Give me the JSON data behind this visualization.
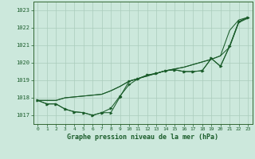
{
  "background_color": "#cce8dc",
  "grid_color": "#aaccbb",
  "line_color": "#1a5c2a",
  "title": "Graphe pression niveau de la mer (hPa)",
  "xlim": [
    -0.5,
    23.5
  ],
  "ylim": [
    1016.5,
    1023.5
  ],
  "yticks": [
    1017,
    1018,
    1019,
    1020,
    1021,
    1022,
    1023
  ],
  "xticks": [
    0,
    1,
    2,
    3,
    4,
    5,
    6,
    7,
    8,
    9,
    10,
    11,
    12,
    13,
    14,
    15,
    16,
    17,
    18,
    19,
    20,
    21,
    22,
    23
  ],
  "series_smooth1": [
    1017.85,
    1017.85,
    1017.85,
    1018.0,
    1018.05,
    1018.1,
    1018.15,
    1018.2,
    1018.4,
    1018.65,
    1018.95,
    1019.1,
    1019.25,
    1019.4,
    1019.55,
    1019.65,
    1019.75,
    1019.9,
    1020.05,
    1020.2,
    1020.4,
    1020.9,
    1022.3,
    1022.55
  ],
  "series_smooth2": [
    1017.85,
    1017.85,
    1017.85,
    1018.0,
    1018.05,
    1018.1,
    1018.15,
    1018.2,
    1018.4,
    1018.65,
    1018.95,
    1019.1,
    1019.25,
    1019.4,
    1019.55,
    1019.65,
    1019.75,
    1019.9,
    1020.05,
    1020.2,
    1020.4,
    1021.85,
    1022.45,
    1022.6
  ],
  "series_marker1": [
    1017.85,
    1017.65,
    1017.65,
    1017.35,
    1017.2,
    1017.15,
    1017.0,
    1017.15,
    1017.15,
    1018.05,
    1018.95,
    1019.1,
    1019.3,
    1019.4,
    1019.55,
    1019.6,
    1019.5,
    1019.5,
    1019.55,
    1020.25,
    1019.8,
    1020.95,
    1022.35,
    1022.6
  ],
  "series_marker2": [
    1017.85,
    1017.65,
    1017.65,
    1017.35,
    1017.2,
    1017.15,
    1017.0,
    1017.15,
    1017.4,
    1018.1,
    1018.75,
    1019.1,
    1019.3,
    1019.4,
    1019.55,
    1019.6,
    1019.5,
    1019.5,
    1019.55,
    1020.25,
    1019.8,
    1020.95,
    1022.35,
    1022.6
  ]
}
